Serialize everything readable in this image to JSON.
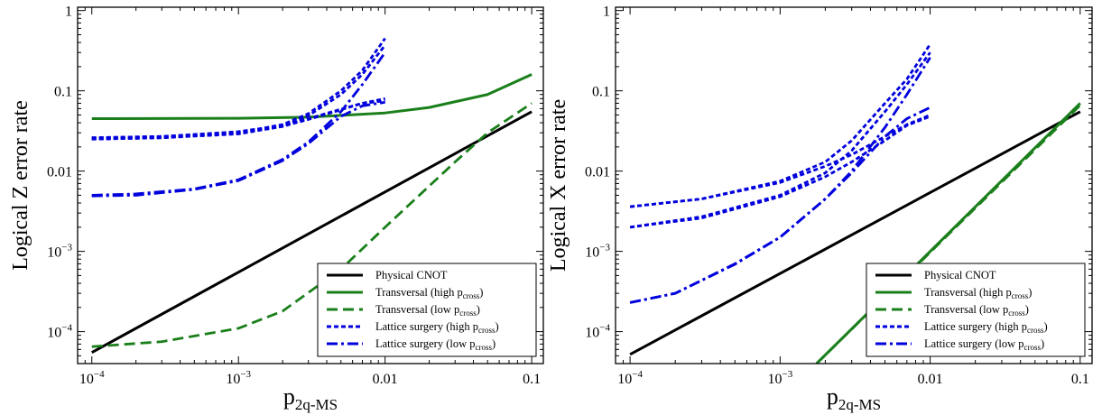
{
  "chart_data": [
    {
      "type": "line",
      "ylabel": "Logical Z error rate",
      "xlabel": "p",
      "xlabel_sub": "2q-MS",
      "xscale": "log",
      "yscale": "log",
      "xlim": [
        8e-05,
        0.12
      ],
      "ylim": [
        4e-05,
        1.1
      ],
      "x_ticks": [
        {
          "value": 0.0001,
          "base": "10",
          "exp": "−4",
          "plain": ""
        },
        {
          "value": 0.001,
          "base": "10",
          "exp": "−3",
          "plain": ""
        },
        {
          "value": 0.01,
          "base": "",
          "exp": "",
          "plain": "0.01"
        },
        {
          "value": 0.1,
          "base": "",
          "exp": "",
          "plain": "0.1"
        }
      ],
      "y_ticks": [
        {
          "value": 0.0001,
          "base": "10",
          "exp": "−4",
          "plain": ""
        },
        {
          "value": 0.001,
          "base": "10",
          "exp": "−3",
          "plain": ""
        },
        {
          "value": 0.01,
          "base": "",
          "exp": "",
          "plain": "0.01"
        },
        {
          "value": 0.1,
          "base": "",
          "exp": "",
          "plain": "0.1"
        },
        {
          "value": 1,
          "base": "",
          "exp": "",
          "plain": "1"
        }
      ],
      "legend": {
        "placement": "lower-right",
        "entries": [
          {
            "label": "Physical CNOT",
            "sub": "",
            "tail": "",
            "color": "#000000",
            "dash": "solid"
          },
          {
            "label": "Transversal (high p",
            "sub": "cross",
            "tail": ")",
            "color": "#1a7f1a",
            "dash": "solid"
          },
          {
            "label": "Transversal (low p",
            "sub": "cross",
            "tail": ")",
            "color": "#1a7f1a",
            "dash": "dashed"
          },
          {
            "label": "Lattice surgery (high p",
            "sub": "cross",
            "tail": ")",
            "color": "#0000dd",
            "dash": "dotted"
          },
          {
            "label": "Lattice surgery (low p",
            "sub": "cross",
            "tail": ")",
            "color": "#0000dd",
            "dash": "dashdot"
          }
        ]
      },
      "series": [
        {
          "color": "#000000",
          "dash": "solid",
          "x": [
            0.0001,
            0.1
          ],
          "y": [
            5.5e-05,
            0.055
          ]
        },
        {
          "color": "#1a7f1a",
          "dash": "solid",
          "x": [
            0.0001,
            0.001,
            0.003,
            0.01,
            0.02,
            0.05,
            0.1
          ],
          "y": [
            0.045,
            0.0455,
            0.047,
            0.053,
            0.062,
            0.09,
            0.16
          ]
        },
        {
          "color": "#1a7f1a",
          "dash": "dashed",
          "x": [
            0.0001,
            0.0003,
            0.001,
            0.002,
            0.005,
            0.01,
            0.03,
            0.05,
            0.1
          ],
          "y": [
            6.5e-05,
            7.5e-05,
            0.00011,
            0.00018,
            0.0006,
            0.002,
            0.013,
            0.03,
            0.07
          ]
        },
        {
          "color": "#0000dd",
          "dash": "dotted",
          "x": [
            0.0001,
            0.0003,
            0.001,
            0.002,
            0.003,
            0.005,
            0.007,
            0.01
          ],
          "y": [
            0.026,
            0.027,
            0.03,
            0.038,
            0.052,
            0.1,
            0.18,
            0.45
          ]
        },
        {
          "color": "#0000dd",
          "dash": "dotted",
          "x": [
            0.0001,
            0.0003,
            0.001,
            0.002,
            0.003,
            0.005,
            0.007,
            0.01
          ],
          "y": [
            0.025,
            0.026,
            0.029,
            0.036,
            0.049,
            0.09,
            0.16,
            0.37
          ]
        },
        {
          "color": "#0000dd",
          "dash": "dotted",
          "x": [
            0.0001,
            0.0003,
            0.001,
            0.002,
            0.003,
            0.005,
            0.007,
            0.01
          ],
          "y": [
            0.025,
            0.026,
            0.03,
            0.036,
            0.044,
            0.058,
            0.07,
            0.08
          ]
        },
        {
          "color": "#0000dd",
          "dash": "dotted",
          "x": [
            0.0001,
            0.0003,
            0.001,
            0.002,
            0.003,
            0.005,
            0.007,
            0.01
          ],
          "y": [
            0.026,
            0.027,
            0.031,
            0.037,
            0.045,
            0.059,
            0.07,
            0.075
          ]
        },
        {
          "color": "#0000dd",
          "dash": "dashdot",
          "x": [
            0.0001,
            0.0002,
            0.0005,
            0.001,
            0.002,
            0.003,
            0.005,
            0.007,
            0.01
          ],
          "y": [
            0.005,
            0.0052,
            0.006,
            0.0078,
            0.014,
            0.023,
            0.055,
            0.12,
            0.3
          ]
        },
        {
          "color": "#0000dd",
          "dash": "dashdot",
          "x": [
            0.0001,
            0.0002,
            0.0005,
            0.001,
            0.002,
            0.003,
            0.005,
            0.007,
            0.01
          ],
          "y": [
            0.0049,
            0.005,
            0.0059,
            0.0076,
            0.0135,
            0.022,
            0.048,
            0.065,
            0.072
          ]
        }
      ]
    },
    {
      "type": "line",
      "ylabel": "Logical X error rate",
      "xlabel": "p",
      "xlabel_sub": "2q-MS",
      "xscale": "log",
      "yscale": "log",
      "xlim": [
        8e-05,
        0.12
      ],
      "ylim": [
        4e-05,
        1.1
      ],
      "x_ticks": [
        {
          "value": 0.0001,
          "base": "10",
          "exp": "−4",
          "plain": ""
        },
        {
          "value": 0.001,
          "base": "10",
          "exp": "−3",
          "plain": ""
        },
        {
          "value": 0.01,
          "base": "",
          "exp": "",
          "plain": "0.01"
        },
        {
          "value": 0.1,
          "base": "",
          "exp": "",
          "plain": "0.1"
        }
      ],
      "y_ticks": [
        {
          "value": 0.0001,
          "base": "10",
          "exp": "−4",
          "plain": ""
        },
        {
          "value": 0.001,
          "base": "10",
          "exp": "−3",
          "plain": ""
        },
        {
          "value": 0.01,
          "base": "",
          "exp": "",
          "plain": "0.01"
        },
        {
          "value": 0.1,
          "base": "",
          "exp": "",
          "plain": "0.1"
        },
        {
          "value": 1,
          "base": "",
          "exp": "",
          "plain": "1"
        }
      ],
      "legend": {
        "placement": "lower-right",
        "entries": [
          {
            "label": "Physical CNOT",
            "sub": "",
            "tail": "",
            "color": "#000000",
            "dash": "solid"
          },
          {
            "label": "Transversal (high p",
            "sub": "cross",
            "tail": ")",
            "color": "#1a7f1a",
            "dash": "solid"
          },
          {
            "label": "Transversal (low p",
            "sub": "cross",
            "tail": ")",
            "color": "#1a7f1a",
            "dash": "dashed"
          },
          {
            "label": "Lattice surgery (high p",
            "sub": "cross",
            "tail": ")",
            "color": "#0000dd",
            "dash": "dotted"
          },
          {
            "label": "Lattice surgery (low p",
            "sub": "cross",
            "tail": ")",
            "color": "#0000dd",
            "dash": "dashdot"
          }
        ]
      },
      "series": [
        {
          "color": "#000000",
          "dash": "solid",
          "x": [
            0.0001,
            0.1
          ],
          "y": [
            5.2e-05,
            0.055
          ]
        },
        {
          "color": "#1a7f1a",
          "dash": "solid",
          "x": [
            0.00175,
            0.1
          ],
          "y": [
            4e-05,
            0.07
          ]
        },
        {
          "color": "#1a7f1a",
          "dash": "dashed",
          "x": [
            0.00175,
            0.1
          ],
          "y": [
            4e-05,
            0.066
          ]
        },
        {
          "color": "#0000dd",
          "dash": "dotted",
          "x": [
            0.0001,
            0.0003,
            0.001,
            0.002,
            0.003,
            0.005,
            0.007,
            0.01
          ],
          "y": [
            0.0036,
            0.0045,
            0.0075,
            0.013,
            0.024,
            0.07,
            0.14,
            0.38
          ]
        },
        {
          "color": "#0000dd",
          "dash": "dotted",
          "x": [
            0.0001,
            0.0003,
            0.001,
            0.002,
            0.003,
            0.005,
            0.007,
            0.01
          ],
          "y": [
            0.002,
            0.0027,
            0.005,
            0.0095,
            0.018,
            0.055,
            0.12,
            0.3
          ]
        },
        {
          "color": "#0000dd",
          "dash": "dotted",
          "x": [
            0.0001,
            0.0003,
            0.001,
            0.002,
            0.003,
            0.005,
            0.007,
            0.01
          ],
          "y": [
            0.0036,
            0.0045,
            0.0072,
            0.0115,
            0.016,
            0.027,
            0.038,
            0.05
          ]
        },
        {
          "color": "#0000dd",
          "dash": "dotted",
          "x": [
            0.0001,
            0.0003,
            0.001,
            0.002,
            0.003,
            0.005,
            0.007,
            0.01
          ],
          "y": [
            0.002,
            0.0026,
            0.0048,
            0.0085,
            0.013,
            0.024,
            0.037,
            0.048
          ]
        },
        {
          "color": "#0000dd",
          "dash": "dashdot",
          "x": [
            0.0001,
            0.0002,
            0.0005,
            0.001,
            0.002,
            0.003,
            0.005,
            0.007,
            0.01
          ],
          "y": [
            0.00023,
            0.0003,
            0.0007,
            0.0015,
            0.0045,
            0.01,
            0.035,
            0.09,
            0.26
          ]
        },
        {
          "color": "#0000dd",
          "dash": "dashdot",
          "x": [
            0.0001,
            0.0002,
            0.0005,
            0.001,
            0.002,
            0.003,
            0.005,
            0.007,
            0.01
          ],
          "y": [
            0.00023,
            0.0003,
            0.00069,
            0.0015,
            0.0045,
            0.0095,
            0.027,
            0.045,
            0.062
          ]
        }
      ]
    }
  ]
}
